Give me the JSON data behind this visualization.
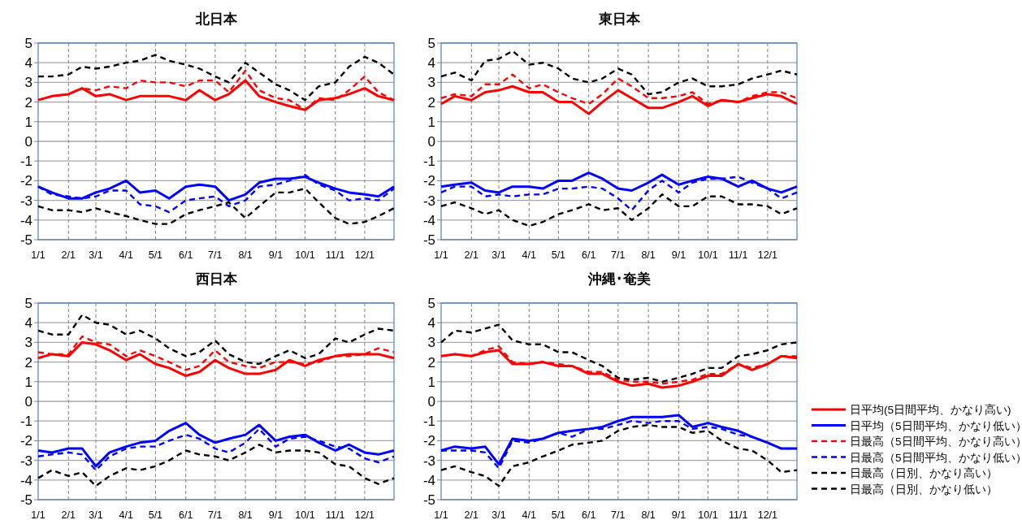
{
  "chart_data": [
    {
      "type": "line",
      "title": "北日本",
      "x": [
        "--01-01",
        "--01-15",
        "--02-01",
        "--02-15",
        "--03-01",
        "--03-15",
        "--04-01",
        "--04-15",
        "--05-01",
        "--05-15",
        "--06-01",
        "--06-15",
        "--07-01",
        "--07-15",
        "--08-01",
        "--08-15",
        "--09-01",
        "--09-15",
        "--10-01",
        "--10-15",
        "--11-01",
        "--11-15",
        "--12-01",
        "--12-15",
        "--12-31"
      ],
      "xlim": [
        "--01-01",
        "--12-31"
      ],
      "xticks": [
        {
          "value": "--01-01",
          "label": "1/1"
        },
        {
          "value": "--02-01",
          "label": "2/1"
        },
        {
          "value": "--03-01",
          "label": "3/1"
        },
        {
          "value": "--04-01",
          "label": "4/1"
        },
        {
          "value": "--05-01",
          "label": "5/1"
        },
        {
          "value": "--06-01",
          "label": "6/1"
        },
        {
          "value": "--07-01",
          "label": "7/1"
        },
        {
          "value": "--08-01",
          "label": "8/1"
        },
        {
          "value": "--09-01",
          "label": "9/1"
        },
        {
          "value": "--10-01",
          "label": "10/1"
        },
        {
          "value": "--11-01",
          "label": "11/1"
        },
        {
          "value": "--12-01",
          "label": "12/1"
        }
      ],
      "ylim": [
        -5,
        5
      ],
      "yticks": [
        -5,
        -4,
        -3,
        -2,
        -1,
        0,
        1,
        2,
        3,
        4,
        5
      ],
      "grid": true,
      "series": [
        {
          "color": "#ff0000",
          "line_style": "solid",
          "values": [
            2.1,
            2.3,
            2.4,
            2.7,
            2.3,
            2.4,
            2.1,
            2.3,
            2.3,
            2.3,
            2.1,
            2.6,
            2.1,
            2.4,
            3.1,
            2.3,
            2.0,
            1.8,
            1.6,
            2.1,
            2.2,
            2.4,
            2.7,
            2.3,
            2.1
          ]
        },
        {
          "color": "#0000ff",
          "line_style": "solid",
          "values": [
            -2.3,
            -2.6,
            -2.9,
            -2.9,
            -2.6,
            -2.4,
            -2.0,
            -2.6,
            -2.5,
            -2.9,
            -2.3,
            -2.2,
            -2.3,
            -3.0,
            -2.7,
            -2.1,
            -1.9,
            -1.9,
            -1.8,
            -2.1,
            -2.4,
            -2.6,
            -2.7,
            -2.8,
            -2.3
          ]
        },
        {
          "color": "#ff0000",
          "line_style": "dashed",
          "values": [
            2.1,
            2.3,
            2.4,
            2.7,
            2.6,
            2.8,
            2.7,
            3.1,
            3.0,
            3.0,
            2.8,
            3.1,
            3.1,
            2.5,
            3.6,
            2.6,
            2.2,
            2.1,
            1.6,
            2.2,
            2.1,
            2.6,
            3.3,
            2.5,
            2.1
          ]
        },
        {
          "color": "#0000ff",
          "line_style": "dashed",
          "values": [
            -2.3,
            -2.7,
            -2.8,
            -2.9,
            -2.8,
            -2.5,
            -2.5,
            -3.2,
            -3.3,
            -3.6,
            -3.0,
            -2.9,
            -2.8,
            -3.3,
            -3.0,
            -2.3,
            -2.2,
            -2.0,
            -1.7,
            -2.2,
            -2.5,
            -3.0,
            -2.9,
            -3.0,
            -2.4
          ]
        },
        {
          "color": "#000000",
          "line_style": "dashed",
          "values": [
            3.3,
            3.3,
            3.4,
            3.8,
            3.7,
            3.8,
            4.0,
            4.1,
            4.4,
            4.1,
            3.9,
            3.7,
            3.3,
            3.0,
            4.0,
            3.5,
            2.9,
            2.6,
            2.1,
            2.8,
            3.0,
            3.8,
            4.3,
            4.0,
            3.4
          ]
        },
        {
          "color": "#000000",
          "line_style": "dashed",
          "values": [
            -3.3,
            -3.5,
            -3.5,
            -3.6,
            -3.4,
            -3.6,
            -3.8,
            -4.0,
            -4.2,
            -4.2,
            -3.7,
            -3.5,
            -3.3,
            -3.1,
            -3.9,
            -3.3,
            -2.6,
            -2.6,
            -2.4,
            -3.1,
            -3.9,
            -4.2,
            -4.1,
            -3.8,
            -3.4
          ]
        }
      ]
    },
    {
      "type": "line",
      "title": "東日本",
      "x": [
        "--01-01",
        "--01-15",
        "--02-01",
        "--02-15",
        "--03-01",
        "--03-15",
        "--04-01",
        "--04-15",
        "--05-01",
        "--05-15",
        "--06-01",
        "--06-15",
        "--07-01",
        "--07-15",
        "--08-01",
        "--08-15",
        "--09-01",
        "--09-15",
        "--10-01",
        "--10-15",
        "--11-01",
        "--11-15",
        "--12-01",
        "--12-15",
        "--12-31"
      ],
      "xlim": [
        "--01-01",
        "--12-31"
      ],
      "xticks": [
        {
          "value": "--01-01",
          "label": "1/1"
        },
        {
          "value": "--02-01",
          "label": "2/1"
        },
        {
          "value": "--03-01",
          "label": "3/1"
        },
        {
          "value": "--04-01",
          "label": "4/1"
        },
        {
          "value": "--05-01",
          "label": "5/1"
        },
        {
          "value": "--06-01",
          "label": "6/1"
        },
        {
          "value": "--07-01",
          "label": "7/1"
        },
        {
          "value": "--08-01",
          "label": "8/1"
        },
        {
          "value": "--09-01",
          "label": "9/1"
        },
        {
          "value": "--10-01",
          "label": "10/1"
        },
        {
          "value": "--11-01",
          "label": "11/1"
        },
        {
          "value": "--12-01",
          "label": "12/1"
        }
      ],
      "ylim": [
        -5,
        5
      ],
      "yticks": [
        -5,
        -4,
        -3,
        -2,
        -1,
        0,
        1,
        2,
        3,
        4,
        5
      ],
      "grid": true,
      "series": [
        {
          "color": "#ff0000",
          "line_style": "solid",
          "values": [
            1.9,
            2.3,
            2.1,
            2.5,
            2.6,
            2.8,
            2.5,
            2.5,
            2.0,
            2.0,
            1.4,
            2.0,
            2.6,
            2.2,
            1.7,
            1.7,
            2.0,
            2.3,
            1.8,
            2.1,
            2.0,
            2.2,
            2.4,
            2.3,
            1.9
          ]
        },
        {
          "color": "#0000ff",
          "line_style": "solid",
          "values": [
            -2.3,
            -2.2,
            -2.1,
            -2.5,
            -2.6,
            -2.3,
            -2.3,
            -2.4,
            -2.0,
            -2.0,
            -1.6,
            -1.9,
            -2.4,
            -2.5,
            -2.1,
            -1.7,
            -2.2,
            -2.0,
            -1.8,
            -1.9,
            -2.3,
            -2.0,
            -2.4,
            -2.6,
            -2.3
          ]
        },
        {
          "color": "#ff0000",
          "line_style": "dashed",
          "values": [
            2.2,
            2.4,
            2.3,
            2.9,
            2.9,
            3.4,
            2.7,
            2.9,
            2.5,
            2.2,
            1.9,
            2.4,
            3.2,
            2.8,
            2.2,
            2.2,
            2.3,
            2.5,
            1.9,
            2.1,
            2.0,
            2.3,
            2.5,
            2.5,
            2.2
          ]
        },
        {
          "color": "#0000ff",
          "line_style": "dashed",
          "values": [
            -2.6,
            -2.3,
            -2.3,
            -2.8,
            -2.7,
            -2.8,
            -2.7,
            -2.7,
            -2.4,
            -2.4,
            -2.3,
            -2.4,
            -2.9,
            -3.5,
            -2.5,
            -2.0,
            -2.6,
            -2.1,
            -1.9,
            -1.9,
            -1.8,
            -2.1,
            -2.4,
            -2.9,
            -2.6
          ]
        },
        {
          "color": "#000000",
          "line_style": "dashed",
          "values": [
            3.3,
            3.5,
            3.1,
            4.1,
            4.2,
            4.6,
            3.9,
            4.0,
            3.7,
            3.2,
            3.0,
            3.2,
            3.7,
            3.4,
            2.4,
            2.5,
            3.0,
            3.2,
            2.8,
            2.8,
            2.9,
            3.2,
            3.4,
            3.6,
            3.4
          ]
        },
        {
          "color": "#000000",
          "line_style": "dashed",
          "values": [
            -3.3,
            -3.1,
            -3.4,
            -3.7,
            -3.5,
            -4.0,
            -4.3,
            -4.1,
            -3.7,
            -3.5,
            -3.2,
            -3.5,
            -3.4,
            -4.0,
            -3.4,
            -2.7,
            -3.3,
            -3.3,
            -2.8,
            -2.8,
            -3.2,
            -3.2,
            -3.3,
            -3.7,
            -3.4
          ]
        }
      ]
    },
    {
      "type": "line",
      "title": "西日本",
      "x": [
        "--01-01",
        "--01-15",
        "--02-01",
        "--02-15",
        "--03-01",
        "--03-15",
        "--04-01",
        "--04-15",
        "--05-01",
        "--05-15",
        "--06-01",
        "--06-15",
        "--07-01",
        "--07-15",
        "--08-01",
        "--08-15",
        "--09-01",
        "--09-15",
        "--10-01",
        "--10-15",
        "--11-01",
        "--11-15",
        "--12-01",
        "--12-15",
        "--12-31"
      ],
      "xlim": [
        "--01-01",
        "--12-31"
      ],
      "xticks": [
        {
          "value": "--01-01",
          "label": "1/1"
        },
        {
          "value": "--02-01",
          "label": "2/1"
        },
        {
          "value": "--03-01",
          "label": "3/1"
        },
        {
          "value": "--04-01",
          "label": "4/1"
        },
        {
          "value": "--05-01",
          "label": "5/1"
        },
        {
          "value": "--06-01",
          "label": "6/1"
        },
        {
          "value": "--07-01",
          "label": "7/1"
        },
        {
          "value": "--08-01",
          "label": "8/1"
        },
        {
          "value": "--09-01",
          "label": "9/1"
        },
        {
          "value": "--10-01",
          "label": "10/1"
        },
        {
          "value": "--11-01",
          "label": "11/1"
        },
        {
          "value": "--12-01",
          "label": "12/1"
        }
      ],
      "ylim": [
        -5,
        5
      ],
      "yticks": [
        -5,
        -4,
        -3,
        -2,
        -1,
        0,
        1,
        2,
        3,
        4,
        5
      ],
      "grid": true,
      "series": [
        {
          "color": "#ff0000",
          "line_style": "solid",
          "values": [
            2.2,
            2.4,
            2.3,
            3.0,
            2.9,
            2.6,
            2.1,
            2.4,
            1.9,
            1.7,
            1.3,
            1.5,
            2.1,
            1.7,
            1.4,
            1.4,
            1.6,
            2.1,
            1.8,
            2.1,
            2.3,
            2.4,
            2.4,
            2.4,
            2.2
          ]
        },
        {
          "color": "#0000ff",
          "line_style": "solid",
          "values": [
            -2.5,
            -2.6,
            -2.4,
            -2.4,
            -3.3,
            -2.6,
            -2.3,
            -2.1,
            -2.0,
            -1.5,
            -1.1,
            -1.7,
            -2.1,
            -1.9,
            -1.7,
            -1.2,
            -2.0,
            -1.8,
            -1.7,
            -2.1,
            -2.5,
            -2.2,
            -2.6,
            -2.7,
            -2.5
          ]
        },
        {
          "color": "#ff0000",
          "line_style": "dashed",
          "values": [
            2.5,
            2.4,
            2.4,
            3.3,
            3.0,
            2.9,
            2.3,
            2.6,
            2.3,
            2.0,
            1.6,
            1.8,
            2.6,
            2.0,
            1.8,
            1.7,
            2.0,
            2.0,
            1.9,
            2.0,
            2.3,
            2.3,
            2.4,
            2.7,
            2.5
          ]
        },
        {
          "color": "#0000ff",
          "line_style": "dashed",
          "values": [
            -2.8,
            -2.7,
            -2.6,
            -2.7,
            -3.5,
            -2.8,
            -2.4,
            -2.3,
            -2.3,
            -2.0,
            -1.7,
            -1.9,
            -2.4,
            -2.6,
            -2.1,
            -1.4,
            -2.3,
            -1.9,
            -1.8,
            -2.0,
            -2.3,
            -2.4,
            -2.9,
            -3.1,
            -2.8
          ]
        },
        {
          "color": "#000000",
          "line_style": "dashed",
          "values": [
            3.6,
            3.4,
            3.4,
            4.4,
            4.0,
            3.9,
            3.4,
            3.6,
            3.2,
            2.7,
            2.3,
            2.5,
            3.1,
            2.4,
            2.0,
            1.9,
            2.3,
            2.6,
            2.2,
            2.4,
            3.2,
            3.0,
            3.4,
            3.7,
            3.6
          ]
        },
        {
          "color": "#000000",
          "line_style": "dashed",
          "values": [
            -3.9,
            -3.5,
            -3.8,
            -3.6,
            -4.3,
            -3.8,
            -3.4,
            -3.5,
            -3.3,
            -3.0,
            -2.5,
            -2.7,
            -2.8,
            -3.0,
            -2.6,
            -2.2,
            -2.6,
            -2.5,
            -2.5,
            -2.6,
            -3.2,
            -3.3,
            -3.9,
            -4.2,
            -3.9
          ]
        }
      ]
    },
    {
      "type": "line",
      "title": "沖縄･奄美",
      "x": [
        "--01-01",
        "--01-15",
        "--02-01",
        "--02-15",
        "--03-01",
        "--03-15",
        "--04-01",
        "--04-15",
        "--05-01",
        "--05-15",
        "--06-01",
        "--06-15",
        "--07-01",
        "--07-15",
        "--08-01",
        "--08-15",
        "--09-01",
        "--09-15",
        "--10-01",
        "--10-15",
        "--11-01",
        "--11-15",
        "--12-01",
        "--12-15",
        "--12-31"
      ],
      "xlim": [
        "--01-01",
        "--12-31"
      ],
      "xticks": [
        {
          "value": "--01-01",
          "label": "1/1"
        },
        {
          "value": "--02-01",
          "label": "2/1"
        },
        {
          "value": "--03-01",
          "label": "3/1"
        },
        {
          "value": "--04-01",
          "label": "4/1"
        },
        {
          "value": "--05-01",
          "label": "5/1"
        },
        {
          "value": "--06-01",
          "label": "6/1"
        },
        {
          "value": "--07-01",
          "label": "7/1"
        },
        {
          "value": "--08-01",
          "label": "8/1"
        },
        {
          "value": "--09-01",
          "label": "9/1"
        },
        {
          "value": "--10-01",
          "label": "10/1"
        },
        {
          "value": "--11-01",
          "label": "11/1"
        },
        {
          "value": "--12-01",
          "label": "12/1"
        }
      ],
      "ylim": [
        -5,
        5
      ],
      "yticks": [
        -5,
        -4,
        -3,
        -2,
        -1,
        0,
        1,
        2,
        3,
        4,
        5
      ],
      "grid": true,
      "legend": "right",
      "series": [
        {
          "name": "日平均(5日間平均、かなり高い)",
          "color": "#ff0000",
          "line_style": "solid",
          "values": [
            2.3,
            2.4,
            2.3,
            2.5,
            2.6,
            1.9,
            1.9,
            2.0,
            1.8,
            1.8,
            1.4,
            1.4,
            1.0,
            0.8,
            0.9,
            0.7,
            0.8,
            1.0,
            1.3,
            1.3,
            1.9,
            1.6,
            1.9,
            2.3,
            2.2
          ]
        },
        {
          "name": "日平均（5日間平均、かなり低い）",
          "color": "#0000ff",
          "line_style": "solid",
          "values": [
            -2.5,
            -2.3,
            -2.4,
            -2.3,
            -3.2,
            -1.9,
            -2.0,
            -1.9,
            -1.6,
            -1.5,
            -1.4,
            -1.3,
            -1.0,
            -0.8,
            -0.8,
            -0.8,
            -0.7,
            -1.3,
            -1.1,
            -1.3,
            -1.5,
            -1.8,
            -2.1,
            -2.4,
            -2.4
          ]
        },
        {
          "name": "日最高（5日間平均、かなり高い）",
          "color": "#ff0000",
          "line_style": "dashed",
          "values": [
            2.3,
            2.4,
            2.3,
            2.6,
            2.8,
            2.0,
            1.9,
            2.0,
            1.9,
            1.8,
            1.5,
            1.5,
            1.1,
            1.0,
            1.0,
            0.9,
            1.0,
            1.1,
            1.4,
            1.4,
            1.9,
            1.7,
            1.9,
            2.3,
            2.3
          ]
        },
        {
          "name": "日最高（5日間平均、かなり低い）",
          "color": "#0000ff",
          "line_style": "dashed",
          "values": [
            -2.5,
            -2.5,
            -2.5,
            -2.6,
            -3.4,
            -2.0,
            -2.1,
            -1.9,
            -1.6,
            -1.8,
            -1.4,
            -1.4,
            -1.2,
            -1.0,
            -1.1,
            -1.0,
            -1.0,
            -1.4,
            -1.3,
            -1.4,
            -1.7,
            -1.8,
            -2.1,
            -2.4,
            -2.4
          ]
        },
        {
          "name": "日最高（日別、かなり高い）",
          "color": "#000000",
          "line_style": "dashed",
          "values": [
            3.0,
            3.6,
            3.5,
            3.7,
            3.9,
            3.1,
            2.9,
            2.9,
            2.5,
            2.5,
            2.1,
            1.8,
            1.2,
            1.1,
            1.2,
            1.0,
            1.2,
            1.4,
            1.7,
            1.7,
            2.3,
            2.4,
            2.6,
            2.9,
            3.0
          ]
        },
        {
          "name": "日最高（日別、かなり低い）",
          "color": "#000000",
          "line_style": "dashed",
          "values": [
            -3.5,
            -3.3,
            -3.6,
            -3.8,
            -4.3,
            -3.3,
            -3.1,
            -2.8,
            -2.5,
            -2.2,
            -2.1,
            -2.0,
            -1.5,
            -1.3,
            -1.2,
            -1.3,
            -1.3,
            -1.6,
            -1.5,
            -2.0,
            -2.4,
            -2.5,
            -3.0,
            -3.6,
            -3.5
          ]
        }
      ]
    }
  ]
}
